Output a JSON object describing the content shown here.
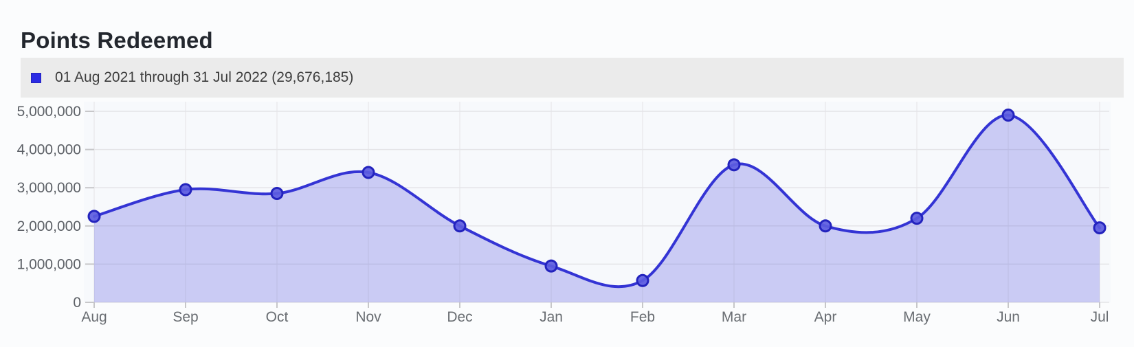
{
  "page": {
    "title": "Points Redeemed"
  },
  "legend": {
    "label": "01 Aug 2021 through 31 Jul 2022 (29,676,185)",
    "swatch_color": "#2b2be4"
  },
  "chart_data": {
    "type": "area",
    "title": "Points Redeemed",
    "categories": [
      "Aug",
      "Sep",
      "Oct",
      "Nov",
      "Dec",
      "Jan",
      "Feb",
      "Mar",
      "Apr",
      "May",
      "Jun",
      "Jul"
    ],
    "series": [
      {
        "name": "01 Aug 2021 through 31 Jul 2022",
        "total_label": "29,676,185",
        "total": 29676185,
        "values": [
          2250000,
          2950000,
          2850000,
          3400000,
          2000000,
          950000,
          570000,
          3600000,
          2000000,
          2200000,
          4900000,
          1950000
        ]
      }
    ],
    "xlabel": "",
    "ylabel": "",
    "ylim": [
      0,
      5000000
    ],
    "y_ticks": [
      0,
      1000000,
      2000000,
      3000000,
      4000000,
      5000000
    ],
    "y_tick_labels": [
      "0",
      "1,000,000",
      "2,000,000",
      "3,000,000",
      "4,000,000",
      "5,000,000"
    ],
    "grid": true,
    "legend_position": "top",
    "curve": "smooth",
    "colors": {
      "line": "#3434d4",
      "area_fill": "rgba(73,73,222,0.26)",
      "marker_fill": "#5c5ce0",
      "marker_stroke": "#2323bd",
      "plot_background": "#f7f9fc",
      "gridline": "#e4e4e7",
      "vertical_gridline": "#ebebed",
      "tick": "#c7c7c9",
      "y_label_color": "#5c6066",
      "x_label_color": "#696d72"
    }
  }
}
